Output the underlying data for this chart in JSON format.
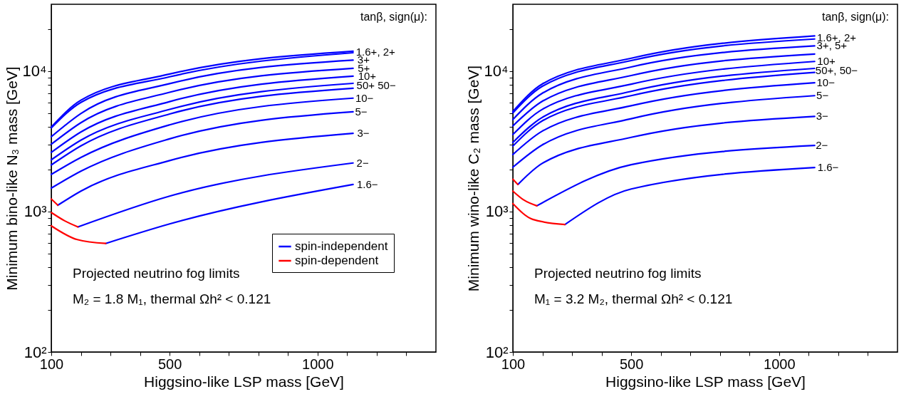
{
  "chart_data": [
    {
      "type": "line",
      "xlabel": "Higgsino-like LSP mass  [GeV]",
      "ylabel": "Minimum bino-like N₃ mass  [GeV]",
      "xlim": [
        100,
        1400
      ],
      "xticks": [
        100,
        {
          "value": 200,
          "label": null
        },
        {
          "value": 300,
          "label": null
        },
        {
          "value": 400,
          "label": null
        },
        500,
        {
          "value": 600,
          "label": null
        },
        {
          "value": 700,
          "label": null
        },
        {
          "value": 800,
          "label": null
        },
        {
          "value": 900,
          "label": null
        },
        1000,
        {
          "value": 1100,
          "label": null
        },
        {
          "value": 1200,
          "label": null
        },
        {
          "value": 1300,
          "label": null
        }
      ],
      "ylim": [
        100,
        30000
      ],
      "yticks": [
        {
          "value": 100,
          "label": "10²"
        },
        {
          "value": 200,
          "label": null
        },
        {
          "value": 300,
          "label": null
        },
        {
          "value": 400,
          "label": null
        },
        {
          "value": 500,
          "label": null
        },
        {
          "value": 600,
          "label": null
        },
        {
          "value": 700,
          "label": null
        },
        {
          "value": 800,
          "label": null
        },
        {
          "value": 900,
          "label": null
        },
        {
          "value": 1000,
          "label": "10³"
        },
        {
          "value": 2000,
          "label": null
        },
        {
          "value": 3000,
          "label": null
        },
        {
          "value": 4000,
          "label": null
        },
        {
          "value": 5000,
          "label": null
        },
        {
          "value": 6000,
          "label": null
        },
        {
          "value": 7000,
          "label": null
        },
        {
          "value": 8000,
          "label": null
        },
        {
          "value": 9000,
          "label": null
        },
        {
          "value": 10000,
          "label": "10⁴"
        },
        {
          "value": 20000,
          "label": null
        }
      ],
      "log": true,
      "legend": "bottom right",
      "series": [
        {
          "name": "spin-independent",
          "color": "#0000ff",
          "x": [
            100,
            200,
            500,
            1120
          ],
          "values": [
            4010,
            6220,
            9550,
            13900
          ]
        },
        {
          "color": "#0000ff",
          "x": [
            100,
            200,
            500,
            1120
          ],
          "values": [
            3950,
            6000,
            9130,
            13550
          ]
        },
        {
          "color": "#0000ff",
          "x": [
            100,
            200,
            500,
            1120
          ],
          "values": [
            3420,
            5000,
            8160,
            12000
          ]
        },
        {
          "color": "#0000ff",
          "x": [
            100,
            200,
            500,
            1120
          ],
          "values": [
            3020,
            4300,
            7080,
            10500
          ]
        },
        {
          "color": "#0000ff",
          "x": [
            100,
            200,
            500,
            1120
          ],
          "values": [
            2640,
            3690,
            6080,
            9230
          ]
        },
        {
          "color": "#0000ff",
          "x": [
            100,
            200,
            500,
            1120
          ],
          "values": [
            2340,
            3230,
            5350,
            8200
          ]
        },
        {
          "color": "#0000ff",
          "x": [
            100,
            200,
            500,
            1120
          ],
          "values": [
            2150,
            2940,
            4960,
            7560
          ]
        },
        {
          "color": "#0000ff",
          "x": [
            100,
            200,
            500,
            1120
          ],
          "values": [
            1840,
            2430,
            4150,
            6430
          ]
        },
        {
          "color": "#0000ff",
          "x": [
            100,
            200,
            500,
            1120
          ],
          "values": [
            1470,
            1940,
            3300,
            5140
          ]
        },
        {
          "color": "#0000ff",
          "x": [
            122,
            200,
            500,
            1120
          ],
          "values": [
            1110,
            1400,
            2310,
            3610
          ]
        },
        {
          "color": "#0000ff",
          "x": [
            190,
            500,
            1120
          ],
          "values": [
            778,
            1290,
            2220
          ]
        },
        {
          "color": "#0000ff",
          "x": [
            284,
            500,
            1120
          ],
          "values": [
            593,
            817,
            1560
          ]
        },
        {
          "name": "spin-dependent",
          "color": "#ff0000",
          "x": [
            100,
            122
          ],
          "values": [
            1230,
            1110
          ]
        },
        {
          "color": "#ff0000",
          "x": [
            100,
            145,
            190
          ],
          "values": [
            985,
            860,
            778
          ]
        },
        {
          "color": "#ff0000",
          "x": [
            100,
            188,
            284
          ],
          "values": [
            792,
            632,
            593
          ]
        }
      ],
      "annotations": [
        "tanβ, sign(μ):",
        "Projected neutrino fog limits",
        "M₂ = 1.8 M₁,  thermal Ωh² < 0.121",
        {
          "text": "1.6+,  2+",
          "x": 1125,
          "y": 13750
        },
        {
          "text": "3+",
          "x": 1130,
          "y": 12000
        },
        {
          "text": "5+",
          "x": 1131,
          "y": 10500
        },
        {
          "text": "10+",
          "x": 1132,
          "y": 9230
        },
        {
          "text": "50+  50−",
          "x": 1127,
          "y": 7870
        },
        {
          "text": "10−",
          "x": 1123,
          "y": 6430
        },
        {
          "text": "5−",
          "x": 1122,
          "y": 5140
        },
        {
          "text": "3−",
          "x": 1129,
          "y": 3610
        },
        {
          "text": "2−",
          "x": 1127,
          "y": 2220
        },
        {
          "text": "1.6−",
          "x": 1128,
          "y": 1560
        }
      ]
    },
    {
      "type": "line",
      "xlabel": "Higgsino-like LSP mass  [GeV]",
      "ylabel": "Minimum wino-like C₂ mass  [GeV]",
      "xlim": [
        100,
        1400
      ],
      "xticks": [
        100,
        {
          "value": 200,
          "label": null
        },
        {
          "value": 300,
          "label": null
        },
        {
          "value": 400,
          "label": null
        },
        500,
        {
          "value": 600,
          "label": null
        },
        {
          "value": 700,
          "label": null
        },
        {
          "value": 800,
          "label": null
        },
        {
          "value": 900,
          "label": null
        },
        1000,
        {
          "value": 1100,
          "label": null
        },
        {
          "value": 1200,
          "label": null
        },
        {
          "value": 1300,
          "label": null
        }
      ],
      "ylim": [
        100,
        30000
      ],
      "yticks": [
        {
          "value": 100,
          "label": "10²"
        },
        {
          "value": 200,
          "label": null
        },
        {
          "value": 300,
          "label": null
        },
        {
          "value": 400,
          "label": null
        },
        {
          "value": 500,
          "label": null
        },
        {
          "value": 600,
          "label": null
        },
        {
          "value": 700,
          "label": null
        },
        {
          "value": 800,
          "label": null
        },
        {
          "value": 900,
          "label": null
        },
        {
          "value": 1000,
          "label": "10³"
        },
        {
          "value": 2000,
          "label": null
        },
        {
          "value": 3000,
          "label": null
        },
        {
          "value": 4000,
          "label": null
        },
        {
          "value": 5000,
          "label": null
        },
        {
          "value": 6000,
          "label": null
        },
        {
          "value": 7000,
          "label": null
        },
        {
          "value": 8000,
          "label": null
        },
        {
          "value": 9000,
          "label": null
        },
        {
          "value": 10000,
          "label": "10⁴"
        },
        {
          "value": 20000,
          "label": null
        }
      ],
      "log": true,
      "legend": "bottom right",
      "series": [
        {
          "name": "spin-independent",
          "color": "#0000ff",
          "x": [
            100,
            200,
            500,
            1120
          ],
          "values": [
            5170,
            8130,
            12370,
            17860
          ]
        },
        {
          "color": "#0000ff",
          "x": [
            100,
            200,
            500,
            1120
          ],
          "values": [
            5050,
            7820,
            11910,
            16970
          ]
        },
        {
          "color": "#0000ff",
          "x": [
            100,
            200,
            500,
            1120
          ],
          "values": [
            4530,
            6980,
            10730,
            15150
          ]
        },
        {
          "color": "#0000ff",
          "x": [
            100,
            200,
            500,
            1120
          ],
          "values": [
            4080,
            6120,
            9320,
            13270
          ]
        },
        {
          "color": "#0000ff",
          "x": [
            100,
            200,
            500,
            1120
          ],
          "values": [
            3540,
            5360,
            8090,
            11740
          ]
        },
        {
          "color": "#0000ff",
          "x": [
            100,
            200,
            500,
            1120
          ],
          "values": [
            3110,
            4700,
            7190,
            10480
          ]
        },
        {
          "color": "#0000ff",
          "x": [
            100,
            200,
            500,
            1120
          ],
          "values": [
            2930,
            4440,
            6700,
            9810
          ]
        },
        {
          "color": "#0000ff",
          "x": [
            100,
            200,
            500,
            1120
          ],
          "values": [
            2550,
            3750,
            5680,
            8280
          ]
        },
        {
          "color": "#0000ff",
          "x": [
            100,
            200,
            500,
            1120
          ],
          "values": [
            2070,
            2990,
            4590,
            6700
          ]
        },
        {
          "color": "#0000ff",
          "x": [
            117,
            200,
            500,
            1120
          ],
          "values": [
            1560,
            2210,
            3380,
            4770
          ]
        },
        {
          "color": "#0000ff",
          "x": [
            181,
            500,
            1120
          ],
          "values": [
            1100,
            2160,
            2960
          ]
        },
        {
          "color": "#0000ff",
          "x": [
            276,
            500,
            1120
          ],
          "values": [
            809,
            1450,
            2060
          ]
        },
        {
          "name": "spin-dependent",
          "color": "#ff0000",
          "x": [
            100,
            117
          ],
          "values": [
            1700,
            1560
          ]
        },
        {
          "color": "#ff0000",
          "x": [
            100,
            137,
            181
          ],
          "values": [
            1400,
            1210,
            1100
          ]
        },
        {
          "color": "#ff0000",
          "x": [
            100,
            167,
            276
          ],
          "values": [
            1140,
            881,
            809
          ]
        }
      ],
      "annotations": [
        "tanβ, sign(μ):",
        "Projected neutrino fog limits",
        "M₁ = 3.2 M₂,  thermal Ωh² < 0.121",
        {
          "text": "1.6+,  2+",
          "x": 1123,
          "y": 17400
        },
        {
          "text": "3+, 5+",
          "x": 1122,
          "y": 15150
        },
        {
          "text": "10+",
          "x": 1124,
          "y": 11740
        },
        {
          "text": "50+,  50−",
          "x": 1118,
          "y": 10130
        },
        {
          "text": "10−",
          "x": 1122,
          "y": 8280
        },
        {
          "text": "5−",
          "x": 1121,
          "y": 6700
        },
        {
          "text": "3−",
          "x": 1120,
          "y": 4770
        },
        {
          "text": "2−",
          "x": 1119,
          "y": 2960
        },
        {
          "text": "1.6−",
          "x": 1125,
          "y": 2060
        }
      ]
    }
  ]
}
